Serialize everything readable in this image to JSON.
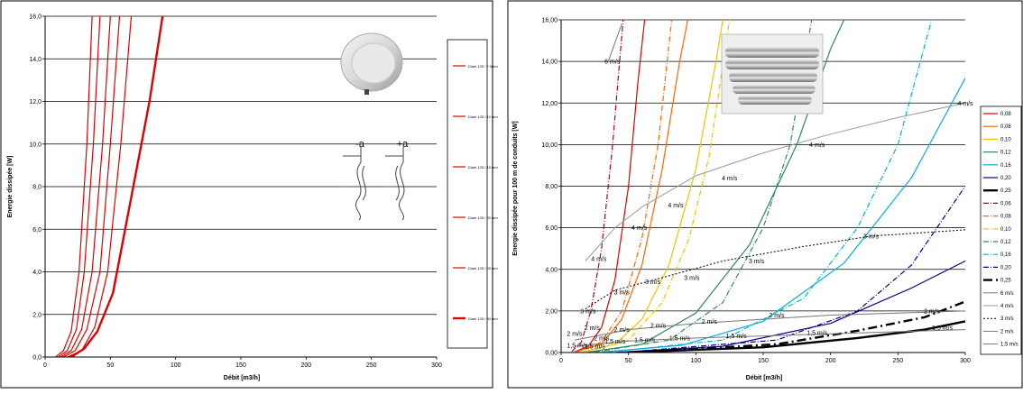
{
  "chart_data": [
    {
      "type": "line",
      "title": "",
      "xlabel": "Débit [m3/h]",
      "ylabel": "Energie dissipée [W]",
      "xlim": [
        0,
        300
      ],
      "ylim": [
        0,
        16
      ],
      "x_ticks": [
        "0",
        "50",
        "100",
        "150",
        "200",
        "250",
        "300"
      ],
      "y_ticks": [
        "0,0",
        "2,0",
        "4,0",
        "6,0",
        "8,0",
        "10,0",
        "12,0",
        "14,0",
        "16,0"
      ],
      "grid": "horizontal",
      "legend_position": "right",
      "diagram_labels": [
        "-a",
        "+a"
      ],
      "series": [
        {
          "name": "Diam 125 / 7,5mm",
          "color": "#e00000",
          "width": 1.2,
          "points": [
            [
              8,
              0
            ],
            [
              14,
              0.3
            ],
            [
              20,
              1.2
            ],
            [
              26,
              4
            ],
            [
              32,
              10
            ],
            [
              36,
              16
            ]
          ]
        },
        {
          "name": "Diam 125 / 10 mm",
          "color": "#e00000",
          "width": 1.2,
          "points": [
            [
              10,
              0
            ],
            [
              17,
              0.3
            ],
            [
              24,
              1.3
            ],
            [
              30,
              4
            ],
            [
              37,
              10
            ],
            [
              42,
              16
            ]
          ]
        },
        {
          "name": "Diam 125 / 15 mm",
          "color": "#e00000",
          "width": 1.2,
          "points": [
            [
              12,
              0
            ],
            [
              20,
              0.3
            ],
            [
              28,
              1.3
            ],
            [
              36,
              4
            ],
            [
              44,
              10
            ],
            [
              50,
              16
            ]
          ]
        },
        {
          "name": "Diam 125 / 20 mm",
          "color": "#e00000",
          "width": 1.2,
          "points": [
            [
              14,
              0
            ],
            [
              23,
              0.3
            ],
            [
              32,
              1.3
            ],
            [
              42,
              4
            ],
            [
              50,
              10
            ],
            [
              57,
              16
            ]
          ]
        },
        {
          "name": "Diam 125 / 25 mm",
          "color": "#e00000",
          "width": 1.2,
          "points": [
            [
              17,
              0
            ],
            [
              28,
              0.3
            ],
            [
              38,
              1.4
            ],
            [
              48,
              4
            ],
            [
              58,
              10
            ],
            [
              66,
              16
            ]
          ]
        },
        {
          "name": "Diam 125 / 30 mm",
          "color": "#e00000",
          "width": 2.4,
          "points": [
            [
              20,
              0
            ],
            [
              30,
              0.4
            ],
            [
              40,
              1.2
            ],
            [
              52,
              3
            ],
            [
              66,
              7.5
            ],
            [
              80,
              12
            ],
            [
              90,
              16
            ]
          ]
        }
      ]
    },
    {
      "type": "line",
      "title": "",
      "xlabel": "Débit [m3/h]",
      "ylabel": "Energie dissipée pour 100 m de conduits [W]",
      "xlim": [
        0,
        300
      ],
      "ylim": [
        0,
        16
      ],
      "x_ticks": [
        "0",
        "50",
        "100",
        "150",
        "200",
        "250",
        "300"
      ],
      "y_ticks": [
        "0,00",
        "2,00",
        "4,00",
        "6,00",
        "8,00",
        "10,00",
        "12,00",
        "14,00",
        "16,00"
      ],
      "grid": "horizontal",
      "legend_position": "right",
      "series": [
        {
          "name": "0,08",
          "color": "#e00000",
          "dash": "",
          "width": 1.2,
          "points": [
            [
              10,
              0.03
            ],
            [
              20,
              0.3
            ],
            [
              30,
              1.2
            ],
            [
              40,
              3.5
            ],
            [
              50,
              8
            ],
            [
              57,
              13
            ],
            [
              62,
              16
            ]
          ]
        },
        {
          "name": "0,08",
          "color": "#ff6600",
          "dash": "",
          "width": 1.2,
          "points": [
            [
              10,
              0.02
            ],
            [
              30,
              0.4
            ],
            [
              45,
              1.6
            ],
            [
              60,
              4.2
            ],
            [
              75,
              8.8
            ],
            [
              88,
              14
            ],
            [
              94,
              16
            ]
          ]
        },
        {
          "name": "0,10",
          "color": "#f2c200",
          "dash": "",
          "width": 1.2,
          "points": [
            [
              15,
              0.02
            ],
            [
              40,
              0.4
            ],
            [
              60,
              1.6
            ],
            [
              80,
              4.2
            ],
            [
              100,
              8.8
            ],
            [
              115,
              14
            ],
            [
              120,
              16
            ]
          ]
        },
        {
          "name": "0,12",
          "color": "#2e8b57",
          "dash": "",
          "width": 1.2,
          "points": [
            [
              20,
              0.02
            ],
            [
              60,
              0.4
            ],
            [
              100,
              1.9
            ],
            [
              140,
              5.2
            ],
            [
              175,
              10
            ],
            [
              200,
              14.6
            ],
            [
              210,
              16
            ]
          ]
        },
        {
          "name": "0,16",
          "color": "#00b0d8",
          "dash": "",
          "width": 1.2,
          "points": [
            [
              30,
              0.02
            ],
            [
              90,
              0.35
            ],
            [
              150,
              1.5
            ],
            [
              210,
              4.3
            ],
            [
              260,
              8.4
            ],
            [
              300,
              13.2
            ]
          ]
        },
        {
          "name": "0,20",
          "color": "#00008b",
          "dash": "",
          "width": 1.2,
          "points": [
            [
              40,
              0.01
            ],
            [
              120,
              0.3
            ],
            [
              200,
              1.4
            ],
            [
              260,
              3.1
            ],
            [
              300,
              4.4
            ]
          ]
        },
        {
          "name": "0,25",
          "color": "#000000",
          "dash": "",
          "width": 2.4,
          "points": [
            [
              50,
              0.01
            ],
            [
              150,
              0.25
            ],
            [
              220,
              0.7
            ],
            [
              270,
              1.1
            ],
            [
              300,
              1.5
            ]
          ]
        },
        {
          "name": "0,06",
          "color": "#b00030",
          "dash": "6,2,1,2",
          "width": 1.2,
          "points": [
            [
              8,
              0.05
            ],
            [
              15,
              0.5
            ],
            [
              22,
              2
            ],
            [
              30,
              5
            ],
            [
              38,
              9.8
            ],
            [
              46,
              16
            ]
          ]
        },
        {
          "name": "0,08",
          "color": "#ff6600",
          "dash": "6,2,1,2",
          "width": 1.2,
          "points": [
            [
              12,
              0.03
            ],
            [
              30,
              0.5
            ],
            [
              45,
              2
            ],
            [
              60,
              5.5
            ],
            [
              72,
              10
            ],
            [
              82,
              16
            ]
          ]
        },
        {
          "name": "0,10",
          "color": "#f2c200",
          "dash": "6,2,1,2",
          "width": 1.2,
          "points": [
            [
              18,
              0.02
            ],
            [
              50,
              0.6
            ],
            [
              75,
              2.4
            ],
            [
              95,
              5.5
            ],
            [
              110,
              9.5
            ],
            [
              125,
              16
            ]
          ]
        },
        {
          "name": "0,12",
          "color": "#2e8b57",
          "dash": "6,2,1,2",
          "width": 1.2,
          "points": [
            [
              25,
              0.02
            ],
            [
              80,
              0.6
            ],
            [
              120,
              2.4
            ],
            [
              150,
              6
            ],
            [
              170,
              10
            ],
            [
              186,
              16
            ]
          ]
        },
        {
          "name": "0,16",
          "color": "#00b0d8",
          "dash": "6,2,1,2",
          "width": 1.2,
          "points": [
            [
              35,
              0.02
            ],
            [
              120,
              0.6
            ],
            [
              180,
              2.6
            ],
            [
              220,
              6
            ],
            [
              250,
              10
            ],
            [
              275,
              16
            ]
          ]
        },
        {
          "name": "0,20",
          "color": "#00008b",
          "dash": "6,2,1,2",
          "width": 1.2,
          "points": [
            [
              45,
              0.01
            ],
            [
              160,
              0.6
            ],
            [
              220,
              2
            ],
            [
              260,
              4.2
            ],
            [
              300,
              8
            ]
          ]
        },
        {
          "name": "0,25",
          "color": "#000000",
          "dash": "10,4,2,4",
          "width": 2.4,
          "points": [
            [
              55,
              0.01
            ],
            [
              160,
              0.4
            ],
            [
              220,
              1.05
            ],
            [
              270,
              1.7
            ],
            [
              300,
              2.45
            ]
          ]
        },
        {
          "name": "6 m/s",
          "color": "#777777",
          "dash": "",
          "width": 1.0,
          "points": [
            [
              35,
              14
            ],
            [
              45,
              15.8
            ]
          ]
        },
        {
          "name": "4 m/s",
          "color": "#999999",
          "dash": "",
          "width": 1.0,
          "points": [
            [
              18,
              4.4
            ],
            [
              40,
              6
            ],
            [
              60,
              7
            ],
            [
              100,
              8.5
            ],
            [
              150,
              9.6
            ],
            [
              200,
              10.5
            ],
            [
              250,
              11.3
            ],
            [
              300,
              12
            ]
          ]
        },
        {
          "name": "3 m/s",
          "color": "#000000",
          "dash": "2,2",
          "width": 1.0,
          "points": [
            [
              18,
              2.1
            ],
            [
              40,
              3
            ],
            [
              75,
              3.6
            ],
            [
              120,
              4.4
            ],
            [
              180,
              5.1
            ],
            [
              230,
              5.6
            ],
            [
              300,
              5.9
            ]
          ]
        },
        {
          "name": "2 m/s",
          "color": "#777777",
          "dash": "",
          "width": 1.0,
          "points": [
            [
              10,
              0.6
            ],
            [
              50,
              1.1
            ],
            [
              100,
              1.4
            ],
            [
              150,
              1.6
            ],
            [
              200,
              1.8
            ],
            [
              250,
              1.9
            ],
            [
              300,
              2
            ]
          ]
        },
        {
          "name": "1,5 m/s",
          "color": "#777777",
          "dash": "",
          "width": 1.0,
          "points": [
            [
              10,
              0.3
            ],
            [
              50,
              0.55
            ],
            [
              100,
              0.7
            ],
            [
              150,
              0.8
            ],
            [
              200,
              0.9
            ],
            [
              250,
              1
            ],
            [
              300,
              1.1
            ]
          ]
        }
      ],
      "annotations": [
        {
          "text": "6 m/s",
          "x": 38,
          "y": 14
        },
        {
          "text": "4 m/s",
          "x": 300,
          "y": 12
        },
        {
          "text": "4 m/s",
          "x": 190,
          "y": 10
        },
        {
          "text": "4 m/s",
          "x": 125,
          "y": 8.4
        },
        {
          "text": "4 m/s",
          "x": 85,
          "y": 7.1
        },
        {
          "text": "4 m/s",
          "x": 58,
          "y": 6
        },
        {
          "text": "4 m/s",
          "x": 28,
          "y": 4.5
        },
        {
          "text": "3 m/s",
          "x": 230,
          "y": 5.6
        },
        {
          "text": "3 m/s",
          "x": 145,
          "y": 4.4
        },
        {
          "text": "3 m/s",
          "x": 97,
          "y": 3.6
        },
        {
          "text": "3 m/s",
          "x": 68,
          "y": 3.4
        },
        {
          "text": "3 m/s",
          "x": 45,
          "y": 2.9
        },
        {
          "text": "3 m/s",
          "x": 20,
          "y": 2
        },
        {
          "text": "2 m/s",
          "x": 275,
          "y": 2
        },
        {
          "text": "2 m/s",
          "x": 160,
          "y": 1.8
        },
        {
          "text": "2 m/s",
          "x": 110,
          "y": 1.5
        },
        {
          "text": "2 m/s",
          "x": 72,
          "y": 1.3
        },
        {
          "text": "2 m/s",
          "x": 45,
          "y": 1.1
        },
        {
          "text": "2 m/s",
          "x": 23,
          "y": 1.2
        },
        {
          "text": "2 m/s",
          "x": 10,
          "y": 0.9
        },
        {
          "text": "1,5 m/s",
          "x": 283,
          "y": 1.2
        },
        {
          "text": "1,5 m/s",
          "x": 190,
          "y": 0.95
        },
        {
          "text": "1,5 m/s",
          "x": 130,
          "y": 0.8
        },
        {
          "text": "1,5 m/s",
          "x": 88,
          "y": 0.7
        },
        {
          "text": "1,5 m/s",
          "x": 62,
          "y": 0.6
        },
        {
          "text": "1,5 m/s",
          "x": 40,
          "y": 0.55
        },
        {
          "text": "1,5 m/s",
          "x": 12,
          "y": 0.35
        },
        {
          "text": "2 m/s",
          "x": 30,
          "y": 0.7
        },
        {
          "text": "1,5 m/s",
          "x": 25,
          "y": 0.3
        }
      ]
    }
  ]
}
